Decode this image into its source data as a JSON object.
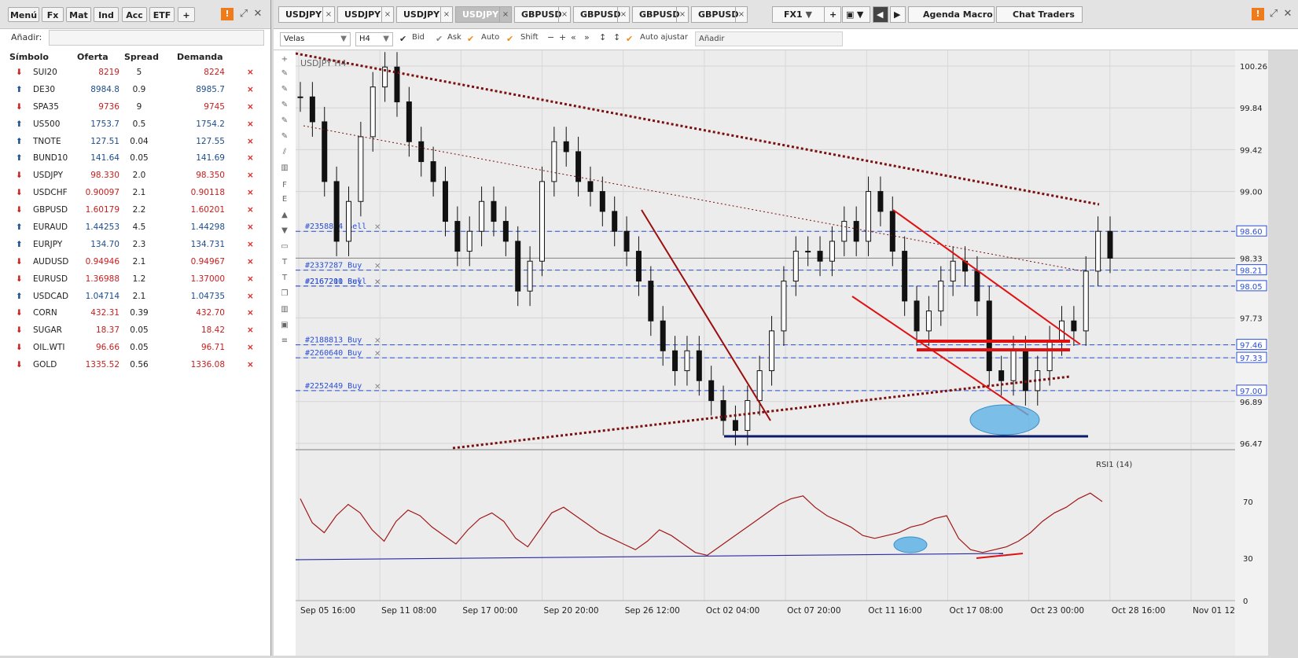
{
  "left_panel": {
    "buttons": [
      "Menú",
      "Fx",
      "Mat",
      "Ind",
      "Acc",
      "ETF",
      "+"
    ],
    "add_label": "Añadir:",
    "columns": [
      "Símbolo",
      "Oferta",
      "Spread",
      "Demanda"
    ],
    "rows": [
      {
        "symbol": "SUI20",
        "bid": "8219",
        "spread": "5",
        "ask": "8224",
        "dir": "down"
      },
      {
        "symbol": "DE30",
        "bid": "8984.8",
        "spread": "0.9",
        "ask": "8985.7",
        "dir": "up"
      },
      {
        "symbol": "SPA35",
        "bid": "9736",
        "spread": "9",
        "ask": "9745",
        "dir": "down"
      },
      {
        "symbol": "US500",
        "bid": "1753.7",
        "spread": "0.5",
        "ask": "1754.2",
        "dir": "up"
      },
      {
        "symbol": "TNOTE",
        "bid": "127.51",
        "spread": "0.04",
        "ask": "127.55",
        "dir": "up"
      },
      {
        "symbol": "BUND10",
        "bid": "141.64",
        "spread": "0.05",
        "ask": "141.69",
        "dir": "up"
      },
      {
        "symbol": "USDJPY",
        "bid": "98.330",
        "spread": "2.0",
        "ask": "98.350",
        "dir": "down"
      },
      {
        "symbol": "USDCHF",
        "bid": "0.90097",
        "spread": "2.1",
        "ask": "0.90118",
        "dir": "down"
      },
      {
        "symbol": "GBPUSD",
        "bid": "1.60179",
        "spread": "2.2",
        "ask": "1.60201",
        "dir": "down"
      },
      {
        "symbol": "EURAUD",
        "bid": "1.44253",
        "spread": "4.5",
        "ask": "1.44298",
        "dir": "up"
      },
      {
        "symbol": "EURJPY",
        "bid": "134.70",
        "spread": "2.3",
        "ask": "134.731",
        "dir": "up"
      },
      {
        "symbol": "AUDUSD",
        "bid": "0.94946",
        "spread": "2.1",
        "ask": "0.94967",
        "dir": "down"
      },
      {
        "symbol": "EURUSD",
        "bid": "1.36988",
        "spread": "1.2",
        "ask": "1.37000",
        "dir": "down"
      },
      {
        "symbol": "USDCAD",
        "bid": "1.04714",
        "spread": "2.1",
        "ask": "1.04735",
        "dir": "up"
      },
      {
        "symbol": "CORN",
        "bid": "432.31",
        "spread": "0.39",
        "ask": "432.70",
        "dir": "down"
      },
      {
        "symbol": "SUGAR",
        "bid": "18.37",
        "spread": "0.05",
        "ask": "18.42",
        "dir": "down"
      },
      {
        "symbol": "OIL.WTI",
        "bid": "96.66",
        "spread": "0.05",
        "ask": "96.71",
        "dir": "down"
      },
      {
        "symbol": "GOLD",
        "bid": "1335.52",
        "spread": "0.56",
        "ask": "1336.08",
        "dir": "down"
      }
    ]
  },
  "tabs": {
    "symbols": [
      "USDJPY",
      "USDJPY",
      "USDJPY",
      "USDJPY",
      "GBPUSD",
      "GBPUSD",
      "GBPUSD",
      "GBPUSD"
    ],
    "active_index": 3,
    "account": "FX1",
    "extra": [
      "Agenda Macro",
      "Chat Traders"
    ]
  },
  "toolbar": {
    "chart_type": "Velas",
    "timeframe": "H4",
    "bid": "Bid",
    "ask": "Ask",
    "auto": "Auto",
    "shift": "Shift",
    "auto_adjust": "Auto ajustar",
    "add": "Añadir"
  },
  "chart_data": {
    "type": "line",
    "title": "USDJPY H4",
    "price_ticks": [
      "100.26",
      "99.84",
      "99.42",
      "99.00",
      "98.60",
      "98.33",
      "98.21",
      "98.05",
      "97.73",
      "97.46",
      "97.33",
      "97.00",
      "96.89",
      "96.47"
    ],
    "price_range": [
      96.47,
      100.26
    ],
    "time_ticks": [
      "Sep 05 16:00",
      "Sep 11 08:00",
      "Sep 17 00:00",
      "Sep 20 20:00",
      "Sep 26 12:00",
      "Oct 02 04:00",
      "Oct 07 20:00",
      "Oct 11 16:00",
      "Oct 17 08:00",
      "Oct 23 00:00",
      "Oct 28 16:00",
      "Nov 01 12:00"
    ],
    "orders": [
      {
        "label": "#2358824 Sell",
        "price": 98.6
      },
      {
        "label": "#2337287 Buy",
        "price": 98.21
      },
      {
        "label": "#2167200 Buy",
        "price": 98.05
      },
      {
        "label": "#2167211 Sell",
        "price": 98.05
      },
      {
        "label": "#2188813 Buy",
        "price": 97.46
      },
      {
        "label": "#2260640 Buy",
        "price": 97.33
      },
      {
        "label": "#2252449 Buy",
        "price": 97.0
      }
    ],
    "close": [
      99.95,
      99.7,
      99.1,
      98.5,
      98.9,
      99.55,
      100.05,
      100.25,
      99.9,
      99.5,
      99.3,
      99.1,
      98.7,
      98.4,
      98.6,
      98.9,
      98.7,
      98.5,
      98.0,
      98.3,
      99.1,
      99.5,
      99.4,
      99.1,
      99.0,
      98.8,
      98.6,
      98.4,
      98.1,
      97.7,
      97.4,
      97.2,
      97.4,
      97.1,
      96.9,
      96.7,
      96.6,
      96.9,
      97.2,
      97.6,
      98.1,
      98.4,
      98.4,
      98.3,
      98.5,
      98.7,
      98.5,
      99.0,
      98.8,
      98.4,
      97.9,
      97.6,
      97.8,
      98.1,
      98.3,
      98.2,
      97.9,
      97.2,
      97.1,
      97.4,
      97.0,
      97.2,
      97.5,
      97.7,
      97.6,
      98.2,
      98.6,
      98.33
    ],
    "rsi_label": "RSI1 (14)",
    "rsi_ticks": [
      "70",
      "30",
      "0"
    ],
    "rsi": [
      72,
      55,
      48,
      60,
      68,
      62,
      50,
      42,
      56,
      64,
      60,
      52,
      46,
      40,
      50,
      58,
      62,
      56,
      44,
      38,
      50,
      62,
      66,
      60,
      54,
      48,
      44,
      40,
      36,
      42,
      50,
      46,
      40,
      34,
      32,
      38,
      44,
      50,
      56,
      62,
      68,
      72,
      74,
      66,
      60,
      56,
      52,
      46,
      44,
      46,
      48,
      52,
      54,
      58,
      60,
      44,
      36,
      34,
      36,
      38,
      42,
      48,
      56,
      62,
      66,
      72,
      76,
      70
    ]
  }
}
